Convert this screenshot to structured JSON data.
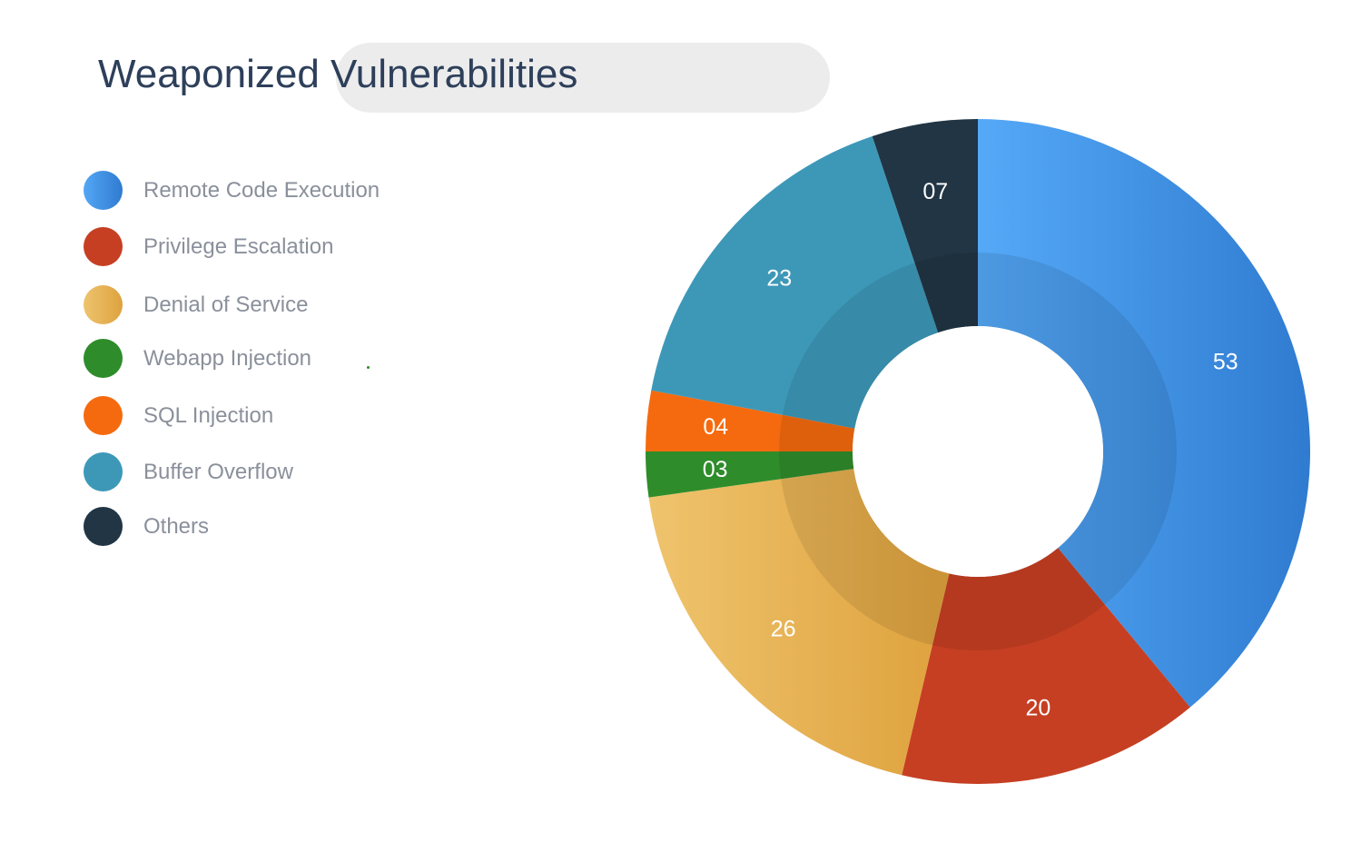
{
  "colors": {
    "remote_code_execution": "#4393e6",
    "privilege_escalation": "#c63f23",
    "denial_of_service": "#e6b057",
    "webapp_injection": "#2f8c2b",
    "sql_injection": "#f56a0e",
    "buffer_overflow": "#3d98b8",
    "others": "#213544"
  },
  "chart_data": {
    "type": "pie",
    "title": "Weaponized Vulnerabilities",
    "legend_position": "left",
    "categories": [
      "Remote Code Execution",
      "Privilege Escalation",
      "Denial of Service",
      "Webapp Injection",
      "SQL Injection",
      "Buffer Overflow",
      "Others"
    ],
    "values": [
      53,
      20,
      26,
      3,
      4,
      23,
      7
    ],
    "data_labels": [
      "53",
      "20",
      "26",
      "03",
      "04",
      "23",
      "07"
    ],
    "colors": [
      "#4393e6",
      "#c63f23",
      "#e6b057",
      "#2f8c2b",
      "#f56a0e",
      "#3d98b8",
      "#213544"
    ]
  }
}
